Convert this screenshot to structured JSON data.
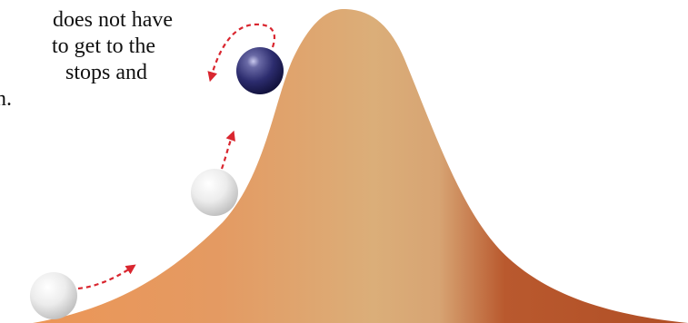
{
  "caption": {
    "line_1": "does not have",
    "line_2": "to get to the",
    "line_3": "stops and",
    "line_4": "n."
  },
  "colors": {
    "hill_left": "#e9935a",
    "hill_middle": "#d9ad78",
    "hill_right": "#b14f27",
    "arrow": "#d9262f",
    "dark_ball": "#2a2a6e",
    "light_ball": "#e6e6e6"
  },
  "icons": {
    "hill": "bell-curve-hill",
    "balls": [
      "light-ball-bottom",
      "light-ball-middle",
      "dark-ball-top"
    ],
    "arrows": [
      "dashed-arrow-right",
      "dashed-arrow-up",
      "dashed-arrow-curved-back"
    ]
  }
}
